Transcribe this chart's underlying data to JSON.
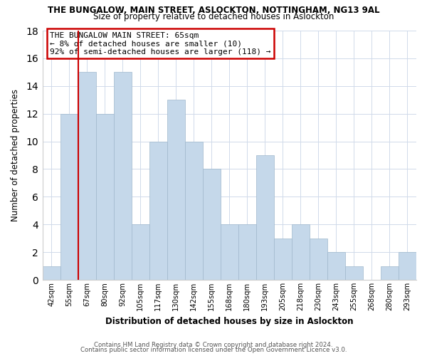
{
  "title": "THE BUNGALOW, MAIN STREET, ASLOCKTON, NOTTINGHAM, NG13 9AL",
  "subtitle": "Size of property relative to detached houses in Aslockton",
  "xlabel": "Distribution of detached houses by size in Aslockton",
  "ylabel": "Number of detached properties",
  "categories": [
    "42sqm",
    "55sqm",
    "67sqm",
    "80sqm",
    "92sqm",
    "105sqm",
    "117sqm",
    "130sqm",
    "142sqm",
    "155sqm",
    "168sqm",
    "180sqm",
    "193sqm",
    "205sqm",
    "218sqm",
    "230sqm",
    "243sqm",
    "255sqm",
    "268sqm",
    "280sqm",
    "293sqm"
  ],
  "values": [
    1,
    12,
    15,
    12,
    15,
    4,
    10,
    13,
    10,
    8,
    4,
    4,
    9,
    3,
    4,
    3,
    2,
    1,
    0,
    1,
    2
  ],
  "bar_color": "#c5d8ea",
  "highlight_index": 2,
  "highlight_color": "#cc0000",
  "annotation_title": "THE BUNGALOW MAIN STREET: 65sqm",
  "annotation_line1": "← 8% of detached houses are smaller (10)",
  "annotation_line2": "92% of semi-detached houses are larger (118) →",
  "ylim": [
    0,
    18
  ],
  "yticks": [
    0,
    2,
    4,
    6,
    8,
    10,
    12,
    14,
    16,
    18
  ],
  "grid_color": "#d0daea",
  "background_color": "#ffffff",
  "footer_line1": "Contains HM Land Registry data © Crown copyright and database right 2024.",
  "footer_line2": "Contains public sector information licensed under the Open Government Licence v3.0."
}
